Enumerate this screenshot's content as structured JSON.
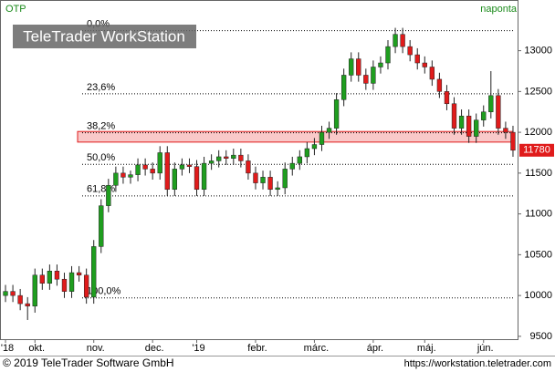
{
  "chart_data": {
    "type": "candlestick",
    "title": "OTP",
    "subtitle": "naponta",
    "categories": [
      "'18",
      null,
      null,
      null,
      "okt.",
      null,
      null,
      null,
      null,
      null,
      null,
      null,
      "nov.",
      null,
      null,
      null,
      null,
      null,
      null,
      null,
      "dec.",
      null,
      null,
      null,
      null,
      null,
      "'19",
      null,
      null,
      null,
      null,
      null,
      null,
      null,
      "febr.",
      null,
      null,
      null,
      null,
      null,
      null,
      null,
      "márc.",
      null,
      null,
      null,
      null,
      null,
      null,
      null,
      "ápr.",
      null,
      null,
      null,
      null,
      null,
      null,
      "máj.",
      null,
      null,
      null,
      null,
      null,
      null,
      null,
      "jún.",
      null,
      null,
      null,
      null
    ],
    "open": [
      10000,
      10050,
      10000,
      9900,
      9870,
      10250,
      10150,
      10300,
      10200,
      10050,
      10280,
      10250,
      9980,
      10600,
      11100,
      11350,
      11500,
      11450,
      11480,
      11600,
      11550,
      11500,
      11750,
      11300,
      11550,
      11600,
      11580,
      11300,
      11620,
      11650,
      11700,
      11680,
      11720,
      11650,
      11500,
      11380,
      11450,
      11300,
      11320,
      11550,
      11620,
      11700,
      11800,
      11850,
      12000,
      12050,
      12400,
      12700,
      12900,
      12700,
      12600,
      12800,
      12850,
      13050,
      13200,
      13050,
      12950,
      12850,
      12800,
      12650,
      12500,
      12350,
      12050,
      12200,
      11950,
      12150,
      12250,
      12450,
      12050,
      12000
    ],
    "high": [
      10130,
      10130,
      10080,
      9980,
      10330,
      10330,
      10380,
      10380,
      10280,
      10360,
      10360,
      10330,
      10680,
      11180,
      11430,
      11580,
      11580,
      11530,
      11680,
      11680,
      11630,
      11830,
      11830,
      11630,
      11680,
      11680,
      11660,
      11700,
      11730,
      11780,
      11780,
      11800,
      11800,
      11730,
      11580,
      11530,
      11530,
      11400,
      11630,
      11700,
      11780,
      11880,
      11930,
      12080,
      12130,
      12480,
      12780,
      12980,
      12980,
      12780,
      12880,
      12930,
      13130,
      13280,
      13280,
      13130,
      13030,
      12930,
      12880,
      12730,
      12580,
      12430,
      12280,
      12280,
      12230,
      12330,
      12750,
      12530,
      12130,
      12080
    ],
    "low": [
      9920,
      9920,
      9820,
      9700,
      9790,
      10070,
      10070,
      10120,
      9970,
      9970,
      10170,
      9900,
      9900,
      10520,
      11020,
      11270,
      11370,
      11370,
      11400,
      11470,
      11420,
      11420,
      11220,
      11220,
      11470,
      11500,
      11220,
      11220,
      11540,
      11570,
      11600,
      11600,
      11570,
      11420,
      11300,
      11300,
      11220,
      11220,
      11240,
      11470,
      11540,
      11620,
      11720,
      11770,
      11920,
      11970,
      12320,
      12620,
      12620,
      12520,
      12520,
      12720,
      12770,
      12970,
      12970,
      12870,
      12770,
      12720,
      12570,
      12420,
      12270,
      11970,
      11970,
      11870,
      11870,
      12070,
      12170,
      11970,
      11920,
      11700
    ],
    "close": [
      10050,
      10000,
      9900,
      9870,
      10250,
      10150,
      10300,
      10200,
      10050,
      10280,
      10250,
      9980,
      10600,
      11100,
      11350,
      11500,
      11450,
      11480,
      11600,
      11550,
      11500,
      11750,
      11300,
      11550,
      11600,
      11580,
      11300,
      11620,
      11650,
      11700,
      11680,
      11720,
      11650,
      11500,
      11380,
      11450,
      11300,
      11320,
      11550,
      11620,
      11700,
      11800,
      11850,
      12000,
      12050,
      12400,
      12700,
      12900,
      12700,
      12600,
      12800,
      12850,
      13050,
      13200,
      13050,
      12950,
      12850,
      12800,
      12650,
      12500,
      12350,
      12050,
      12200,
      11950,
      12150,
      12250,
      12450,
      12050,
      12000,
      11780
    ],
    "up_color": "#1f9e1f",
    "down_color": "#e01b1b",
    "ylim": [
      9465,
      13610
    ],
    "yticks": [
      9500,
      10000,
      10500,
      11000,
      11500,
      12000,
      12500,
      13000
    ],
    "levels": [
      {
        "value": 13245,
        "label": "0,0%"
      },
      {
        "value": 12472,
        "label": "23,6%"
      },
      {
        "value": 11994,
        "label": "38,2%"
      },
      {
        "value": 11607,
        "label": "50,0%"
      },
      {
        "value": 11221,
        "label": "61,8%"
      },
      {
        "value": 9970,
        "label": "100,0%"
      }
    ],
    "band": [
      11880,
      12010
    ],
    "band_color": "#f9c9c9"
  },
  "watermark": "TeleTrader WorkStation",
  "footer": {
    "copyright": "© 2019 TeleTrader Software GmbH",
    "url": "https://workstation.teletrader.com"
  }
}
